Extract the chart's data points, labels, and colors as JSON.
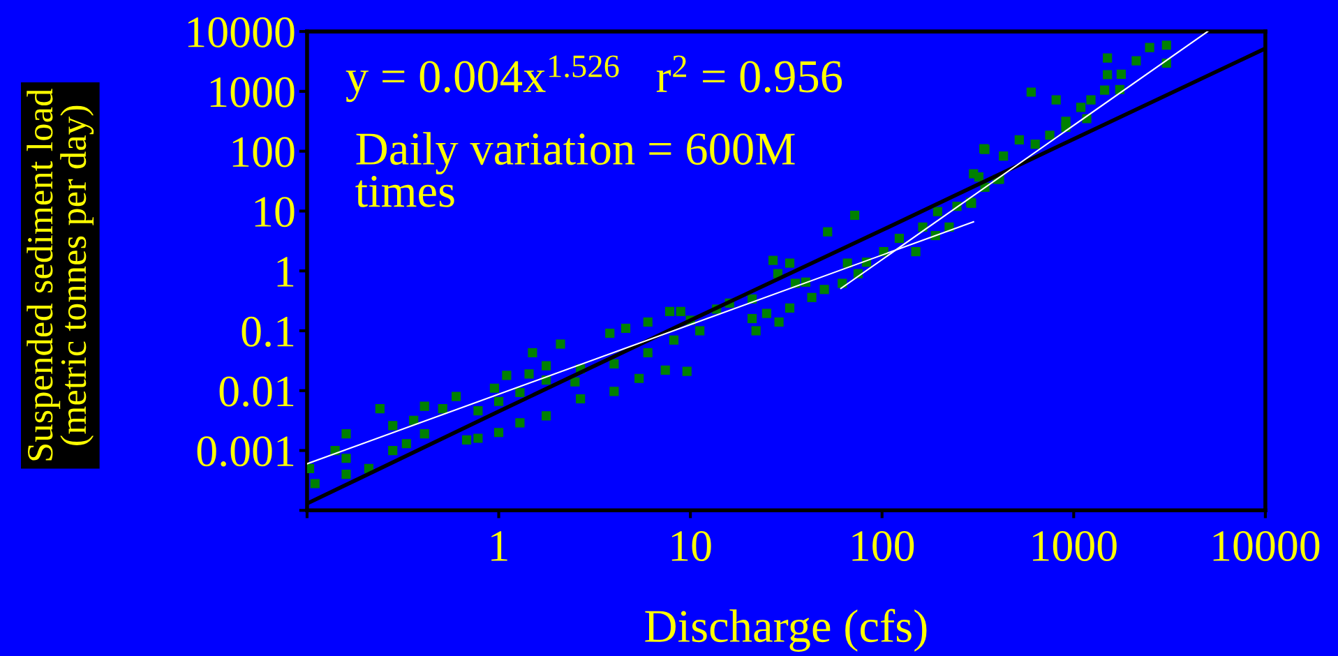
{
  "chart_data": {
    "type": "scatter",
    "xlabel": "Discharge (cfs)",
    "ylabel": "Suspended sediment load\n(metric tonnes per day)",
    "log": "xy",
    "xlim": [
      0.1,
      10000
    ],
    "ylim": [
      0.0001,
      10000
    ],
    "xticks": [
      {
        "value": 0.1,
        "label": null
      },
      1,
      10,
      100,
      1000,
      10000
    ],
    "yticks": [
      {
        "value": 0.0001,
        "label": null
      },
      0.001,
      0.01,
      0.1,
      1,
      10,
      100,
      1000,
      10000
    ],
    "grid": false,
    "legend": false,
    "annotations": [
      "y = 0.004x$^{1.526}$   r$^{2}$ = 0.956",
      "Daily variation = 600M\ntimes"
    ],
    "series": [
      {
        "color": "#008000",
        "marker": "square",
        "x": [
          0.103,
          0.11,
          0.14,
          0.16,
          0.16,
          0.16,
          0.21,
          0.24,
          0.28,
          0.28,
          0.33,
          0.36,
          0.41,
          0.41,
          0.51,
          0.6,
          0.68,
          0.78,
          1.0,
          1.29,
          1.77,
          2.67,
          4.0,
          5.4,
          7.4,
          9.6,
          0.78,
          1.0,
          1.29,
          1.77,
          2.67,
          4.0,
          6.0,
          8.2,
          11.2,
          0.95,
          1.1,
          1.44,
          1.5,
          1.77,
          2.1,
          2.5,
          3.8,
          4.6,
          6.0,
          7.8,
          8.9,
          10,
          13.7,
          16,
          21,
          27,
          33,
          28.6,
          22,
          29,
          33,
          21,
          25,
          35.3,
          40,
          43,
          50,
          62,
          66,
          72,
          52,
          75,
          83,
          102,
          123,
          150,
          163,
          190,
          195,
          224,
          246,
          293,
          300,
          344,
          400,
          344,
          600,
          810,
          1500,
          1500,
          2490,
          3050,
          3050,
          2120,
          1770,
          1740,
          1450,
          1230,
          1170,
          1090,
          910,
          910,
          750,
          630,
          520,
          430,
          340,
          410,
          320,
          290
        ],
        "values": [
          0.0005,
          0.00028,
          0.001,
          0.00074,
          0.0004,
          0.0019,
          0.0005,
          0.005,
          0.0026,
          0.001,
          0.0013,
          0.0032,
          0.0055,
          0.0019,
          0.005,
          0.008,
          0.0015,
          0.0016,
          0.002,
          0.0029,
          0.0038,
          0.0073,
          0.0097,
          0.016,
          0.022,
          0.021,
          0.0046,
          0.0066,
          0.0093,
          0.015,
          0.023,
          0.028,
          0.043,
          0.07,
          0.1,
          0.011,
          0.018,
          0.019,
          0.043,
          0.026,
          0.06,
          0.014,
          0.091,
          0.11,
          0.14,
          0.21,
          0.21,
          0.15,
          0.23,
          0.29,
          0.34,
          1.5,
          1.35,
          0.9,
          0.1,
          0.14,
          0.24,
          0.16,
          0.195,
          0.62,
          0.65,
          0.36,
          0.49,
          0.62,
          1.35,
          8.5,
          4.5,
          0.9,
          1.4,
          2.1,
          3.5,
          2.1,
          5.4,
          3.9,
          9.8,
          5.4,
          12,
          13.5,
          42,
          25,
          34,
          107,
          970,
          720,
          3600,
          1900,
          5400,
          5900,
          2960,
          3240,
          1930,
          1070,
          1050,
          720,
          350,
          540,
          315,
          250,
          185,
          131,
          155,
          83,
          110,
          34,
          37,
          14
        ]
      },
      {
        "type": "line",
        "marker": "none",
        "color": "#000000",
        "x": [
          0.1,
          1,
          10,
          100,
          1000,
          10000
        ],
        "values": [
          0.00013,
          0.0045,
          0.15,
          4.8,
          160,
          5200
        ]
      },
      {
        "type": "line",
        "marker": "none",
        "color": "#ffffff",
        "x": [
          0.1,
          300
        ],
        "values": [
          0.0006,
          6.6
        ]
      },
      {
        "type": "line",
        "marker": "none",
        "color": "#ffffff",
        "x": [
          61,
          5000
        ],
        "values": [
          0.51,
          10000
        ]
      }
    ]
  }
}
